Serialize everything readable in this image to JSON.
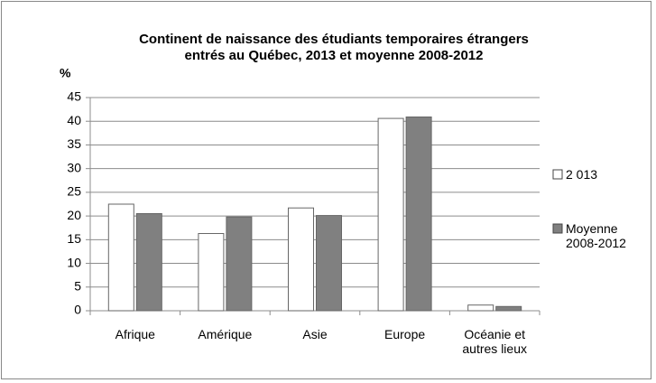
{
  "chart_data": {
    "type": "bar",
    "title": [
      "Continent de naissance des étudiants temporaires étrangers",
      "entrés au Québec, 2013 et moyenne 2008-2012"
    ],
    "y_label": "%",
    "categories": [
      "Afrique",
      "Amérique",
      "Asie",
      "Europe",
      "Océanie et autres lieux"
    ],
    "series": [
      {
        "name": "2 013",
        "color": "#ffffff",
        "values": [
          22.5,
          16.3,
          21.7,
          40.6,
          1.2
        ]
      },
      {
        "name": "Moyenne 2008-2012",
        "color": "#808080",
        "values": [
          20.5,
          19.8,
          20.1,
          40.9,
          0.9
        ]
      }
    ],
    "ylim": [
      0,
      45
    ],
    "yticks": [
      0,
      5,
      10,
      15,
      20,
      25,
      30,
      35,
      40,
      45
    ],
    "grid": true,
    "legend": "right"
  }
}
